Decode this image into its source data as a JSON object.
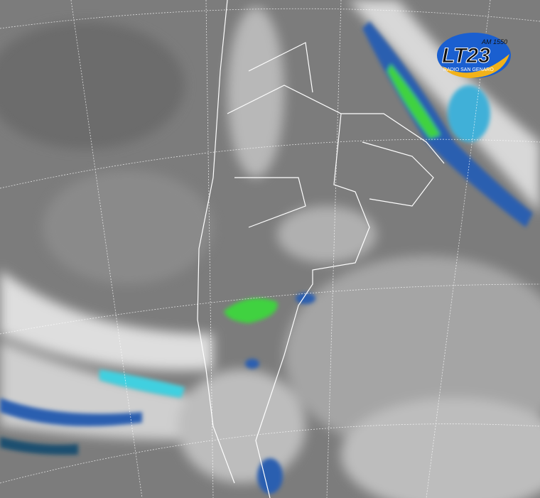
{
  "image": {
    "kind": "infrared satellite image",
    "region": "southern South America"
  },
  "logo": {
    "name": "LT23",
    "frequency": "AM 1550",
    "tagline": "RADIO SAN GENARO",
    "colors": {
      "blue": "#1a5fd0",
      "yellow": "#f2b21a",
      "text": "#111111"
    }
  },
  "colors": {
    "background": "#7c7c7c",
    "cloud_white": "#e8e8e8",
    "cloud_cyan": "#3fd0e0",
    "cloud_blue": "#1a4fa0",
    "cloud_green": "#3fd23f",
    "borders": "#ffffff"
  }
}
